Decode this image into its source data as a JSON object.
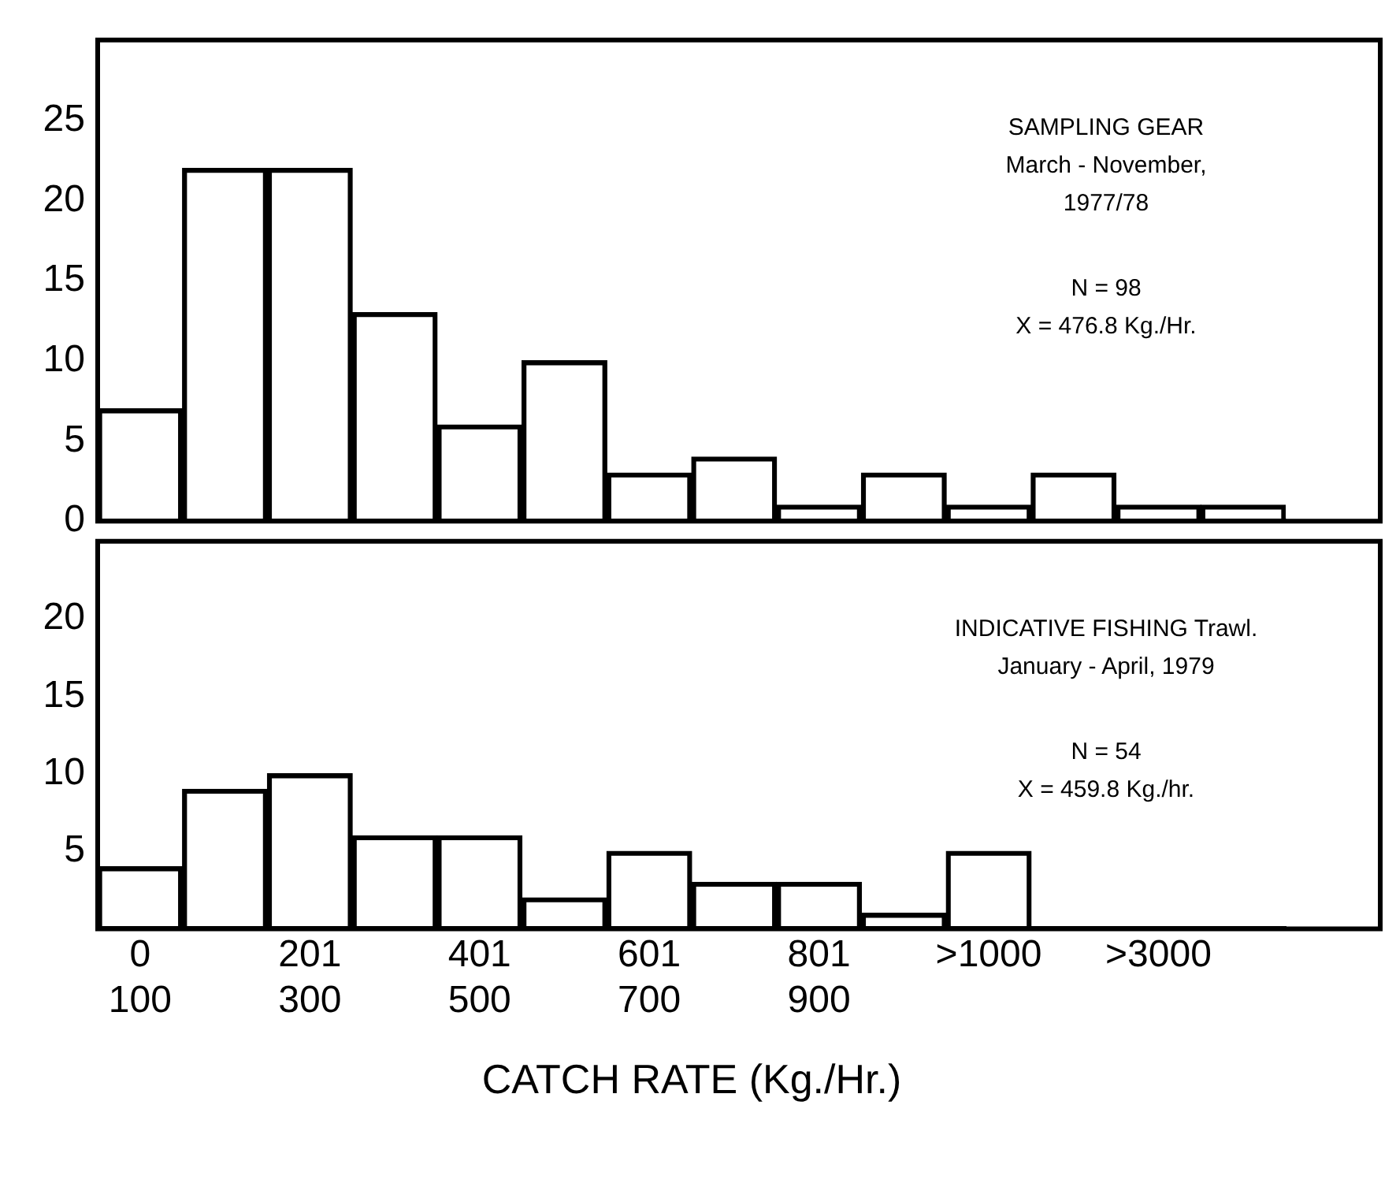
{
  "chart_data": [
    {
      "type": "bar",
      "categories": [
        null,
        null,
        null,
        null,
        null,
        null,
        null,
        null,
        null,
        null,
        null,
        null,
        null,
        null
      ],
      "values": [
        7,
        22,
        22,
        13,
        6,
        10,
        3,
        4,
        1,
        3,
        1,
        3,
        1,
        1
      ],
      "color": "#000000",
      "ylim": [
        0,
        30
      ],
      "yticks": [
        0,
        5,
        10,
        15,
        20,
        25
      ],
      "grid": false,
      "tick_labels": "y",
      "annotations": [
        "SAMPLING GEAR",
        "March - November,",
        "1977/78",
        "N = 98",
        "X = 476.8 Kg./Hr."
      ]
    },
    {
      "type": "bar",
      "categories": [
        "0 100",
        null,
        "201 300",
        null,
        "401 500",
        null,
        "601 700",
        null,
        "801 900",
        null,
        ">1000",
        null,
        ">3000",
        null
      ],
      "values": [
        4,
        9,
        10,
        6,
        6,
        2,
        5,
        3,
        3,
        1,
        5,
        0,
        0,
        0
      ],
      "color": "#000000",
      "ylim": [
        0,
        25
      ],
      "yticks": [
        5,
        10,
        15,
        20
      ],
      "grid": false,
      "xlabel": "CATCH RATE (Kg./Hr.)",
      "annotations": [
        "INDICATIVE FISHING Trawl.",
        "January - April, 1979",
        "N = 54",
        "X = 459.8 Kg./hr."
      ]
    }
  ]
}
